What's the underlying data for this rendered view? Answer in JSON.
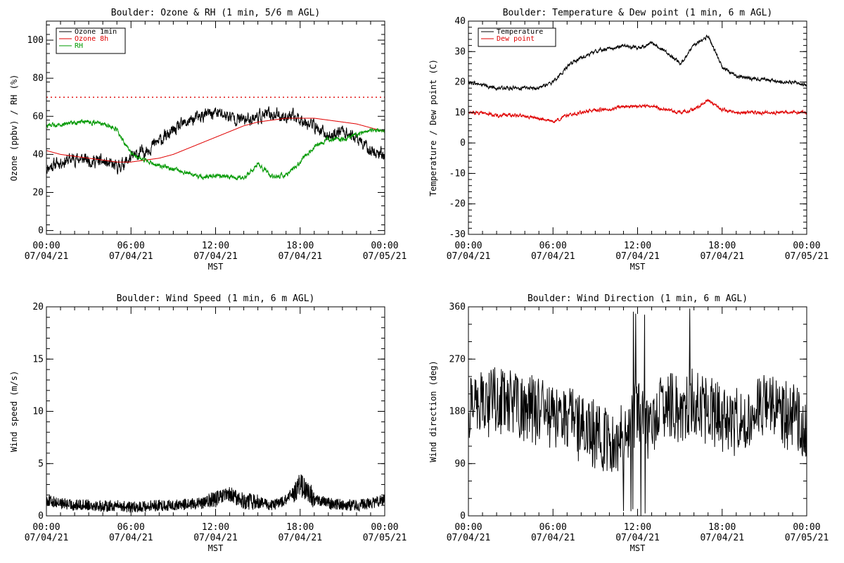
{
  "chart_data": [
    {
      "type": "line",
      "title": "Boulder: Ozone & RH (1 min, 5/6 m AGL)",
      "xlabel": "MST",
      "ylabel": "Ozone (ppbv) / RH (%)",
      "xlim": [
        "00:00 07/04/21",
        "00:00 07/05/21"
      ],
      "ylim": [
        -2,
        110
      ],
      "xticks": [
        {
          "time": "00:00",
          "date": "07/04/21"
        },
        {
          "time": "06:00",
          "date": "07/04/21"
        },
        {
          "time": "12:00",
          "date": "07/04/21"
        },
        {
          "time": "18:00",
          "date": "07/04/21"
        },
        {
          "time": "00:00",
          "date": "07/05/21"
        }
      ],
      "yticks": [
        "0",
        "20",
        "40",
        "60",
        "80",
        "100"
      ],
      "ytick_values": [
        0,
        20,
        40,
        60,
        80,
        100
      ],
      "reference_line": {
        "value": 70,
        "color": "#e00000",
        "style": "dotted"
      },
      "legend": {
        "placement": "top-left"
      },
      "x_hours": [
        0,
        1,
        2,
        3,
        4,
        5,
        6,
        7,
        8,
        9,
        10,
        11,
        12,
        13,
        14,
        15,
        16,
        17,
        18,
        19,
        20,
        21,
        22,
        23,
        24
      ],
      "series": [
        {
          "name": "Ozone 1min",
          "color": "#000000",
          "values": [
            33,
            36,
            38,
            37,
            36,
            33,
            38,
            42,
            47,
            52,
            57,
            60,
            62,
            60,
            58,
            60,
            61,
            60,
            59,
            55,
            49,
            53,
            48,
            42,
            40
          ]
        },
        {
          "name": "Ozone 8h",
          "color": "#e00000",
          "values": [
            42,
            40,
            39,
            38,
            37,
            36,
            36,
            37,
            38,
            40,
            43,
            46,
            49,
            52,
            55,
            57,
            58,
            59,
            59,
            59,
            58,
            57,
            56,
            54,
            52
          ]
        },
        {
          "name": "RH",
          "color": "#009900",
          "values": [
            55,
            56,
            57,
            57,
            56,
            53,
            40,
            37,
            34,
            32,
            30,
            28,
            29,
            28,
            27,
            35,
            28,
            29,
            36,
            44,
            48,
            48,
            50,
            53,
            52
          ]
        }
      ]
    },
    {
      "type": "line",
      "title": "Boulder: Temperature & Dew point (1 min, 6 m AGL)",
      "xlabel": "MST",
      "ylabel": "Temperature / Dew point (C)",
      "xlim": [
        "00:00 07/04/21",
        "00:00 07/05/21"
      ],
      "ylim": [
        -30,
        40
      ],
      "xticks": [
        {
          "time": "00:00",
          "date": "07/04/21"
        },
        {
          "time": "06:00",
          "date": "07/04/21"
        },
        {
          "time": "12:00",
          "date": "07/04/21"
        },
        {
          "time": "18:00",
          "date": "07/04/21"
        },
        {
          "time": "00:00",
          "date": "07/05/21"
        }
      ],
      "yticks": [
        "-30",
        "-20",
        "-10",
        "0",
        "10",
        "20",
        "30",
        "40"
      ],
      "ytick_values": [
        -30,
        -20,
        -10,
        0,
        10,
        20,
        30,
        40
      ],
      "legend": {
        "placement": "top-left"
      },
      "x_hours": [
        0,
        1,
        2,
        3,
        4,
        5,
        6,
        7,
        8,
        9,
        10,
        11,
        12,
        13,
        14,
        15,
        16,
        17,
        18,
        19,
        20,
        21,
        22,
        23,
        24
      ],
      "series": [
        {
          "name": "Temperature",
          "color": "#000000",
          "values": [
            20,
            19,
            18,
            18,
            18,
            18,
            20,
            25,
            28,
            30,
            31,
            32,
            31,
            33,
            30,
            26,
            32,
            35,
            25,
            22,
            21,
            21,
            20,
            20,
            19
          ]
        },
        {
          "name": "Dew point",
          "color": "#e00000",
          "values": [
            10,
            10,
            9,
            9,
            9,
            8,
            7,
            9,
            10,
            11,
            11,
            12,
            12,
            12,
            11,
            10,
            11,
            14,
            11,
            10,
            10,
            10,
            10,
            10,
            10
          ]
        }
      ]
    },
    {
      "type": "line",
      "title": "Boulder: Wind Speed (1 min, 6 m AGL)",
      "xlabel": "MST",
      "ylabel": "Wind speed (m/s)",
      "xlim": [
        "00:00 07/04/21",
        "00:00 07/05/21"
      ],
      "ylim": [
        0,
        20
      ],
      "xticks": [
        {
          "time": "00:00",
          "date": "07/04/21"
        },
        {
          "time": "06:00",
          "date": "07/04/21"
        },
        {
          "time": "12:00",
          "date": "07/04/21"
        },
        {
          "time": "18:00",
          "date": "07/04/21"
        },
        {
          "time": "00:00",
          "date": "07/05/21"
        }
      ],
      "yticks": [
        "0",
        "5",
        "10",
        "15",
        "20"
      ],
      "ytick_values": [
        0,
        5,
        10,
        15,
        20
      ],
      "x_hours": [
        0,
        1,
        2,
        3,
        4,
        5,
        6,
        7,
        8,
        9,
        10,
        11,
        12,
        13,
        14,
        15,
        16,
        17,
        18,
        19,
        20,
        21,
        22,
        23,
        24
      ],
      "series": [
        {
          "name": "",
          "color": "#000000",
          "values": [
            1.5,
            1.2,
            1.0,
            1.1,
            0.9,
            1.0,
            0.8,
            0.9,
            1.0,
            1.0,
            1.1,
            1.2,
            1.6,
            2.0,
            1.4,
            1.3,
            1.0,
            1.5,
            3.0,
            1.6,
            1.2,
            1.1,
            1.0,
            1.2,
            1.5
          ]
        }
      ]
    },
    {
      "type": "line",
      "title": "Boulder: Wind Direction (1 min, 6 m AGL)",
      "xlabel": "MST",
      "ylabel": "Wind direction (deg)",
      "xlim": [
        "00:00 07/04/21",
        "00:00 07/05/21"
      ],
      "ylim": [
        0,
        360
      ],
      "xticks": [
        {
          "time": "00:00",
          "date": "07/04/21"
        },
        {
          "time": "06:00",
          "date": "07/04/21"
        },
        {
          "time": "12:00",
          "date": "07/04/21"
        },
        {
          "time": "18:00",
          "date": "07/04/21"
        },
        {
          "time": "00:00",
          "date": "07/05/21"
        }
      ],
      "yticks": [
        "0",
        "90",
        "180",
        "270",
        "360"
      ],
      "ytick_values": [
        0,
        90,
        180,
        270,
        360
      ],
      "x_hours": [
        0,
        1,
        2,
        3,
        4,
        5,
        6,
        7,
        8,
        9,
        10,
        11,
        12,
        13,
        14,
        15,
        16,
        17,
        18,
        19,
        20,
        21,
        22,
        23,
        24
      ],
      "series": [
        {
          "name": "",
          "color": "#000000",
          "values": [
            180,
            190,
            200,
            195,
            185,
            180,
            175,
            170,
            150,
            140,
            130,
            140,
            180,
            150,
            200,
            180,
            200,
            180,
            170,
            160,
            170,
            190,
            180,
            170,
            150
          ]
        }
      ]
    }
  ]
}
